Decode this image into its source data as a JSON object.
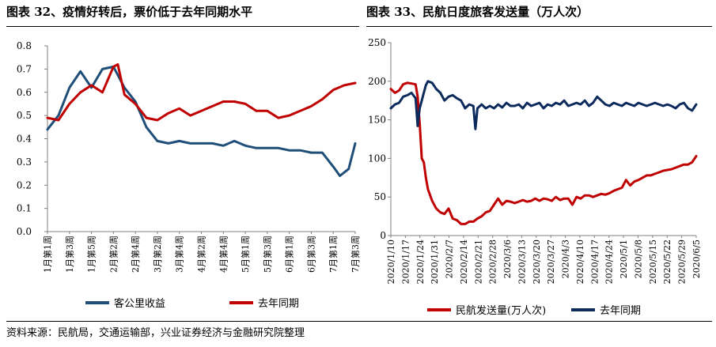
{
  "source_note": "资料来源：民航局，交通运输部，兴业证券经济与金融研究院整理",
  "chart_data": [
    {
      "type": "line",
      "title": "图表 32、疫情好转后，票价低于去年同期水平",
      "ylim": [
        0,
        0.8
      ],
      "yticks": [
        "0.0",
        "0.1",
        "0.2",
        "0.3",
        "0.4",
        "0.5",
        "0.6",
        "0.7",
        "0.8"
      ],
      "x_tick_labels": [
        "1月第1周",
        "1月第3周",
        "1月第5周",
        "2月第2周",
        "2月第4周",
        "3月第2周",
        "3月第4周",
        "4月第2周",
        "4月第4周",
        "5月第1周",
        "5月第3周",
        "6月第1周",
        "6月第3周",
        "7月第1周",
        "7月第3周"
      ],
      "legend_position": "bottom",
      "series": [
        {
          "name": "客公里收益",
          "color": "#1f4e79",
          "x": [
            0,
            0.5,
            1,
            1.5,
            2,
            2.5,
            3,
            3.5,
            4,
            4.5,
            5,
            5.5,
            6,
            6.5,
            7,
            7.5,
            8,
            8.5,
            9,
            9.5,
            10,
            10.5,
            11,
            11.5,
            12,
            12.5,
            13,
            13.3,
            13.7,
            14
          ],
          "values": [
            0.44,
            0.5,
            0.62,
            0.69,
            0.62,
            0.7,
            0.71,
            0.62,
            0.56,
            0.45,
            0.39,
            0.38,
            0.39,
            0.38,
            0.38,
            0.38,
            0.37,
            0.39,
            0.37,
            0.36,
            0.36,
            0.36,
            0.35,
            0.35,
            0.34,
            0.34,
            0.28,
            0.24,
            0.27,
            0.38
          ]
        },
        {
          "name": "去年同期",
          "color": "#c00000",
          "x": [
            0,
            0.5,
            1,
            1.5,
            2,
            2.5,
            3,
            3.2,
            3.5,
            4,
            4.5,
            5,
            5.5,
            6,
            6.5,
            7,
            7.5,
            8,
            8.5,
            9,
            9.5,
            10,
            10.5,
            11,
            11.5,
            12,
            12.5,
            13,
            13.5,
            14
          ],
          "values": [
            0.49,
            0.48,
            0.55,
            0.6,
            0.63,
            0.6,
            0.71,
            0.72,
            0.59,
            0.55,
            0.49,
            0.48,
            0.51,
            0.53,
            0.5,
            0.52,
            0.54,
            0.56,
            0.56,
            0.55,
            0.52,
            0.52,
            0.49,
            0.5,
            0.52,
            0.54,
            0.57,
            0.61,
            0.63,
            0.64
          ]
        }
      ]
    },
    {
      "type": "line",
      "title": "图表 33、民航日度旅客发送量（万人次）",
      "ylim": [
        0,
        250
      ],
      "yticks": [
        "0",
        "50",
        "100",
        "150",
        "200",
        "250"
      ],
      "x_tick_labels": [
        "2020/1/10",
        "2020/1/17",
        "2020/1/24",
        "2020/1/31",
        "2020/2/7",
        "2020/2/14",
        "2020/2/21",
        "2020/2/28",
        "2020/3/6",
        "2020/3/13",
        "2020/3/20",
        "2020/3/27",
        "2020/4/3",
        "2020/4/10",
        "2020/4/17",
        "2020/4/24",
        "2020/5/1",
        "2020/5/8",
        "2020/5/15",
        "2020/5/22",
        "2020/5/29",
        "2020/6/5"
      ],
      "legend_position": "bottom",
      "series": [
        {
          "name": "民航发送量(万人次)",
          "color": "#c00000",
          "x": [
            0,
            2,
            4,
            6,
            8,
            10,
            12,
            13,
            14,
            15,
            16,
            17,
            18,
            20,
            22,
            24,
            26,
            28,
            30,
            32,
            34,
            36,
            38,
            40,
            42,
            44,
            46,
            48,
            50,
            52,
            54,
            56,
            58,
            60,
            62,
            64,
            66,
            68,
            70,
            72,
            74,
            76,
            78,
            80,
            82,
            84,
            86,
            88,
            90,
            92,
            94,
            96,
            98,
            100,
            102,
            104,
            106,
            108,
            110,
            112,
            114,
            116,
            118,
            120,
            122,
            124,
            126,
            128,
            130,
            132,
            134,
            136,
            138,
            140,
            142,
            144,
            146,
            148
          ],
          "values": [
            190,
            185,
            188,
            196,
            198,
            197,
            196,
            180,
            145,
            100,
            95,
            75,
            60,
            45,
            35,
            30,
            28,
            35,
            22,
            20,
            15,
            15,
            18,
            18,
            22,
            25,
            30,
            32,
            40,
            48,
            40,
            45,
            44,
            42,
            44,
            46,
            44,
            45,
            48,
            45,
            48,
            47,
            45,
            50,
            46,
            48,
            48,
            40,
            50,
            48,
            52,
            52,
            50,
            52,
            54,
            53,
            55,
            58,
            60,
            62,
            72,
            65,
            70,
            72,
            75,
            78,
            78,
            80,
            82,
            84,
            85,
            86,
            88,
            90,
            92,
            92,
            95,
            103
          ]
        },
        {
          "name": "去年同期",
          "color": "#0d2a5c",
          "x": [
            0,
            2,
            4,
            6,
            8,
            10,
            12,
            13,
            14,
            15,
            16,
            17,
            18,
            20,
            22,
            24,
            26,
            28,
            30,
            32,
            34,
            36,
            38,
            40,
            41,
            42,
            44,
            46,
            48,
            50,
            52,
            54,
            56,
            58,
            60,
            62,
            64,
            66,
            68,
            70,
            72,
            74,
            76,
            78,
            80,
            82,
            84,
            86,
            88,
            90,
            92,
            94,
            96,
            98,
            100,
            102,
            104,
            106,
            108,
            110,
            112,
            114,
            116,
            118,
            120,
            122,
            124,
            126,
            128,
            130,
            132,
            134,
            136,
            138,
            140,
            142,
            144,
            146,
            148
          ],
          "values": [
            165,
            170,
            172,
            180,
            182,
            185,
            178,
            142,
            165,
            175,
            185,
            195,
            200,
            198,
            190,
            185,
            175,
            180,
            182,
            178,
            175,
            165,
            170,
            168,
            138,
            165,
            170,
            165,
            168,
            165,
            170,
            166,
            172,
            168,
            168,
            170,
            165,
            172,
            168,
            170,
            172,
            165,
            170,
            168,
            172,
            170,
            175,
            168,
            170,
            172,
            170,
            175,
            168,
            172,
            180,
            175,
            170,
            168,
            172,
            170,
            168,
            172,
            170,
            168,
            172,
            170,
            168,
            170,
            172,
            170,
            168,
            170,
            168,
            165,
            170,
            172,
            165,
            162,
            170
          ]
        }
      ]
    }
  ]
}
